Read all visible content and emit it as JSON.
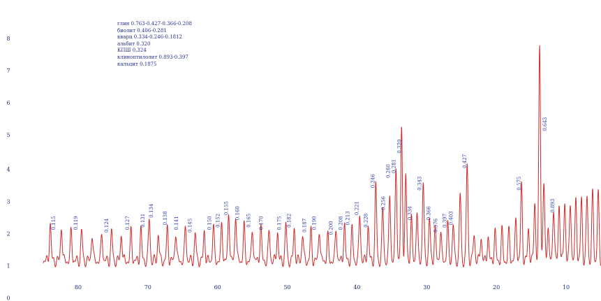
{
  "legend": [
    "глин   0.763-0.427-0.366-0.208",
    "биолит   0.406-0.281",
    "кварц   0.334-0.246-0.1812",
    "альбит   0.320",
    "КПШ   0.324",
    "клиноптилолит   0.893-0.397",
    "кальцит   0.1875"
  ],
  "colors": {
    "line": "#cc2b2b",
    "axis_text": "#1f2f7a",
    "annotation": "#2a3aa8"
  },
  "chart_data": {
    "type": "line",
    "title": "",
    "xlabel": "",
    "ylabel": "",
    "x_reversed": true,
    "xlim": [
      5,
      85
    ],
    "ylim": [
      0,
      100
    ],
    "x_ticks": [
      "80",
      "70",
      "60",
      "50",
      "40",
      "30",
      "20",
      "10"
    ],
    "x_tick_values": [
      80,
      70,
      60,
      50,
      40,
      30,
      20,
      10
    ],
    "y_ticks": [
      "8",
      "7",
      "6",
      "5",
      "4",
      "3",
      "2",
      "1",
      "0"
    ],
    "y_tick_values": [
      93,
      80,
      67,
      54,
      40,
      27,
      14,
      1,
      -12
    ],
    "baseline": 3,
    "series": [
      {
        "peaks": [
          [
            84.0,
            18
          ],
          [
            82.4,
            17
          ],
          [
            81.0,
            15
          ],
          [
            79.5,
            15
          ],
          [
            78.0,
            14
          ],
          [
            76.6,
            14
          ],
          [
            75.2,
            15
          ],
          [
            73.8,
            14
          ],
          [
            72.4,
            15
          ],
          [
            71.0,
            16
          ],
          [
            69.8,
            20
          ],
          [
            68.5,
            14
          ],
          [
            67.2,
            16
          ],
          [
            66.0,
            15
          ],
          [
            64.6,
            17
          ],
          [
            63.2,
            14
          ],
          [
            61.9,
            15
          ],
          [
            60.6,
            17
          ],
          [
            59.4,
            18
          ],
          [
            58.4,
            23
          ],
          [
            57.4,
            22
          ],
          [
            56.2,
            17
          ],
          [
            55.0,
            16
          ],
          [
            53.8,
            17
          ],
          [
            52.6,
            15
          ],
          [
            51.4,
            15
          ],
          [
            50.2,
            18
          ],
          [
            49.0,
            16
          ],
          [
            47.8,
            14
          ],
          [
            46.6,
            15
          ],
          [
            45.4,
            16
          ],
          [
            44.2,
            13
          ],
          [
            43.0,
            16
          ],
          [
            41.8,
            18
          ],
          [
            40.7,
            16
          ],
          [
            39.6,
            22
          ],
          [
            38.4,
            17
          ],
          [
            37.3,
            34
          ],
          [
            36.3,
            24
          ],
          [
            35.3,
            30
          ],
          [
            34.4,
            41
          ],
          [
            33.6,
            56
          ],
          [
            33.0,
            37
          ],
          [
            32.2,
            20
          ],
          [
            31.4,
            23
          ],
          [
            30.5,
            35
          ],
          [
            29.6,
            20
          ],
          [
            28.8,
            16
          ],
          [
            28.0,
            15
          ],
          [
            27.0,
            18
          ],
          [
            26.2,
            18
          ],
          [
            25.2,
            30
          ],
          [
            24.2,
            42
          ],
          [
            23.2,
            14
          ],
          [
            22.2,
            13
          ],
          [
            21.2,
            13
          ],
          [
            20.2,
            15
          ],
          [
            19.2,
            15
          ],
          [
            18.2,
            15
          ],
          [
            17.2,
            20
          ],
          [
            16.4,
            34
          ],
          [
            15.4,
            16
          ],
          [
            14.5,
            27
          ],
          [
            13.8,
            90
          ],
          [
            13.2,
            34
          ],
          [
            12.6,
            17
          ],
          [
            11.8,
            25
          ],
          [
            11.0,
            26
          ],
          [
            10.2,
            27
          ],
          [
            9.4,
            27
          ],
          [
            8.6,
            28
          ],
          [
            7.8,
            28
          ],
          [
            7.0,
            29
          ],
          [
            6.2,
            30
          ],
          [
            5.4,
            30
          ]
        ]
      }
    ],
    "annotations": [
      {
        "x": 83.4,
        "y": 16,
        "text": "0.115"
      },
      {
        "x": 80.2,
        "y": 16,
        "text": "0.119"
      },
      {
        "x": 75.8,
        "y": 15,
        "text": "0.124"
      },
      {
        "x": 72.8,
        "y": 16,
        "text": "0.127"
      },
      {
        "x": 70.6,
        "y": 17,
        "text": "0.131"
      },
      {
        "x": 69.4,
        "y": 21,
        "text": "0.134"
      },
      {
        "x": 67.4,
        "y": 18,
        "text": "0.138"
      },
      {
        "x": 65.8,
        "y": 16,
        "text": "0.141"
      },
      {
        "x": 63.8,
        "y": 15,
        "text": "0.145"
      },
      {
        "x": 61.0,
        "y": 16,
        "text": "0.150"
      },
      {
        "x": 59.8,
        "y": 17,
        "text": "0.152"
      },
      {
        "x": 58.6,
        "y": 22,
        "text": "0.155"
      },
      {
        "x": 57.0,
        "y": 20,
        "text": "0.160"
      },
      {
        "x": 55.4,
        "y": 17,
        "text": "0.165"
      },
      {
        "x": 53.6,
        "y": 16,
        "text": "0.170"
      },
      {
        "x": 51.0,
        "y": 16,
        "text": "0.175"
      },
      {
        "x": 49.6,
        "y": 17,
        "text": "0.182"
      },
      {
        "x": 47.4,
        "y": 15,
        "text": "0.187"
      },
      {
        "x": 46.0,
        "y": 16,
        "text": "0.190"
      },
      {
        "x": 43.6,
        "y": 14,
        "text": "0.200"
      },
      {
        "x": 42.2,
        "y": 16,
        "text": "0.208"
      },
      {
        "x": 41.2,
        "y": 18,
        "text": "0.213"
      },
      {
        "x": 39.9,
        "y": 22,
        "text": "0.221"
      },
      {
        "x": 38.6,
        "y": 17,
        "text": "0.228"
      },
      {
        "x": 37.6,
        "y": 33,
        "text": "0.246"
      },
      {
        "x": 36.1,
        "y": 24,
        "text": "0.256"
      },
      {
        "x": 35.4,
        "y": 37,
        "text": "0.260"
      },
      {
        "x": 34.6,
        "y": 39,
        "text": "0.281"
      },
      {
        "x": 33.8,
        "y": 47,
        "text": "0.320"
      },
      {
        "x": 32.3,
        "y": 20,
        "text": "0.334"
      },
      {
        "x": 30.9,
        "y": 32,
        "text": "0.343"
      },
      {
        "x": 29.6,
        "y": 20,
        "text": "0.366"
      },
      {
        "x": 28.6,
        "y": 15,
        "text": "0.376"
      },
      {
        "x": 27.3,
        "y": 17,
        "text": "0.397"
      },
      {
        "x": 26.4,
        "y": 18,
        "text": "0.403"
      },
      {
        "x": 24.4,
        "y": 41,
        "text": "0.427"
      },
      {
        "x": 16.6,
        "y": 32,
        "text": "0.575"
      },
      {
        "x": 12.9,
        "y": 56,
        "text": "0.643"
      },
      {
        "x": 11.8,
        "y": 23,
        "text": "0.893"
      }
    ]
  }
}
